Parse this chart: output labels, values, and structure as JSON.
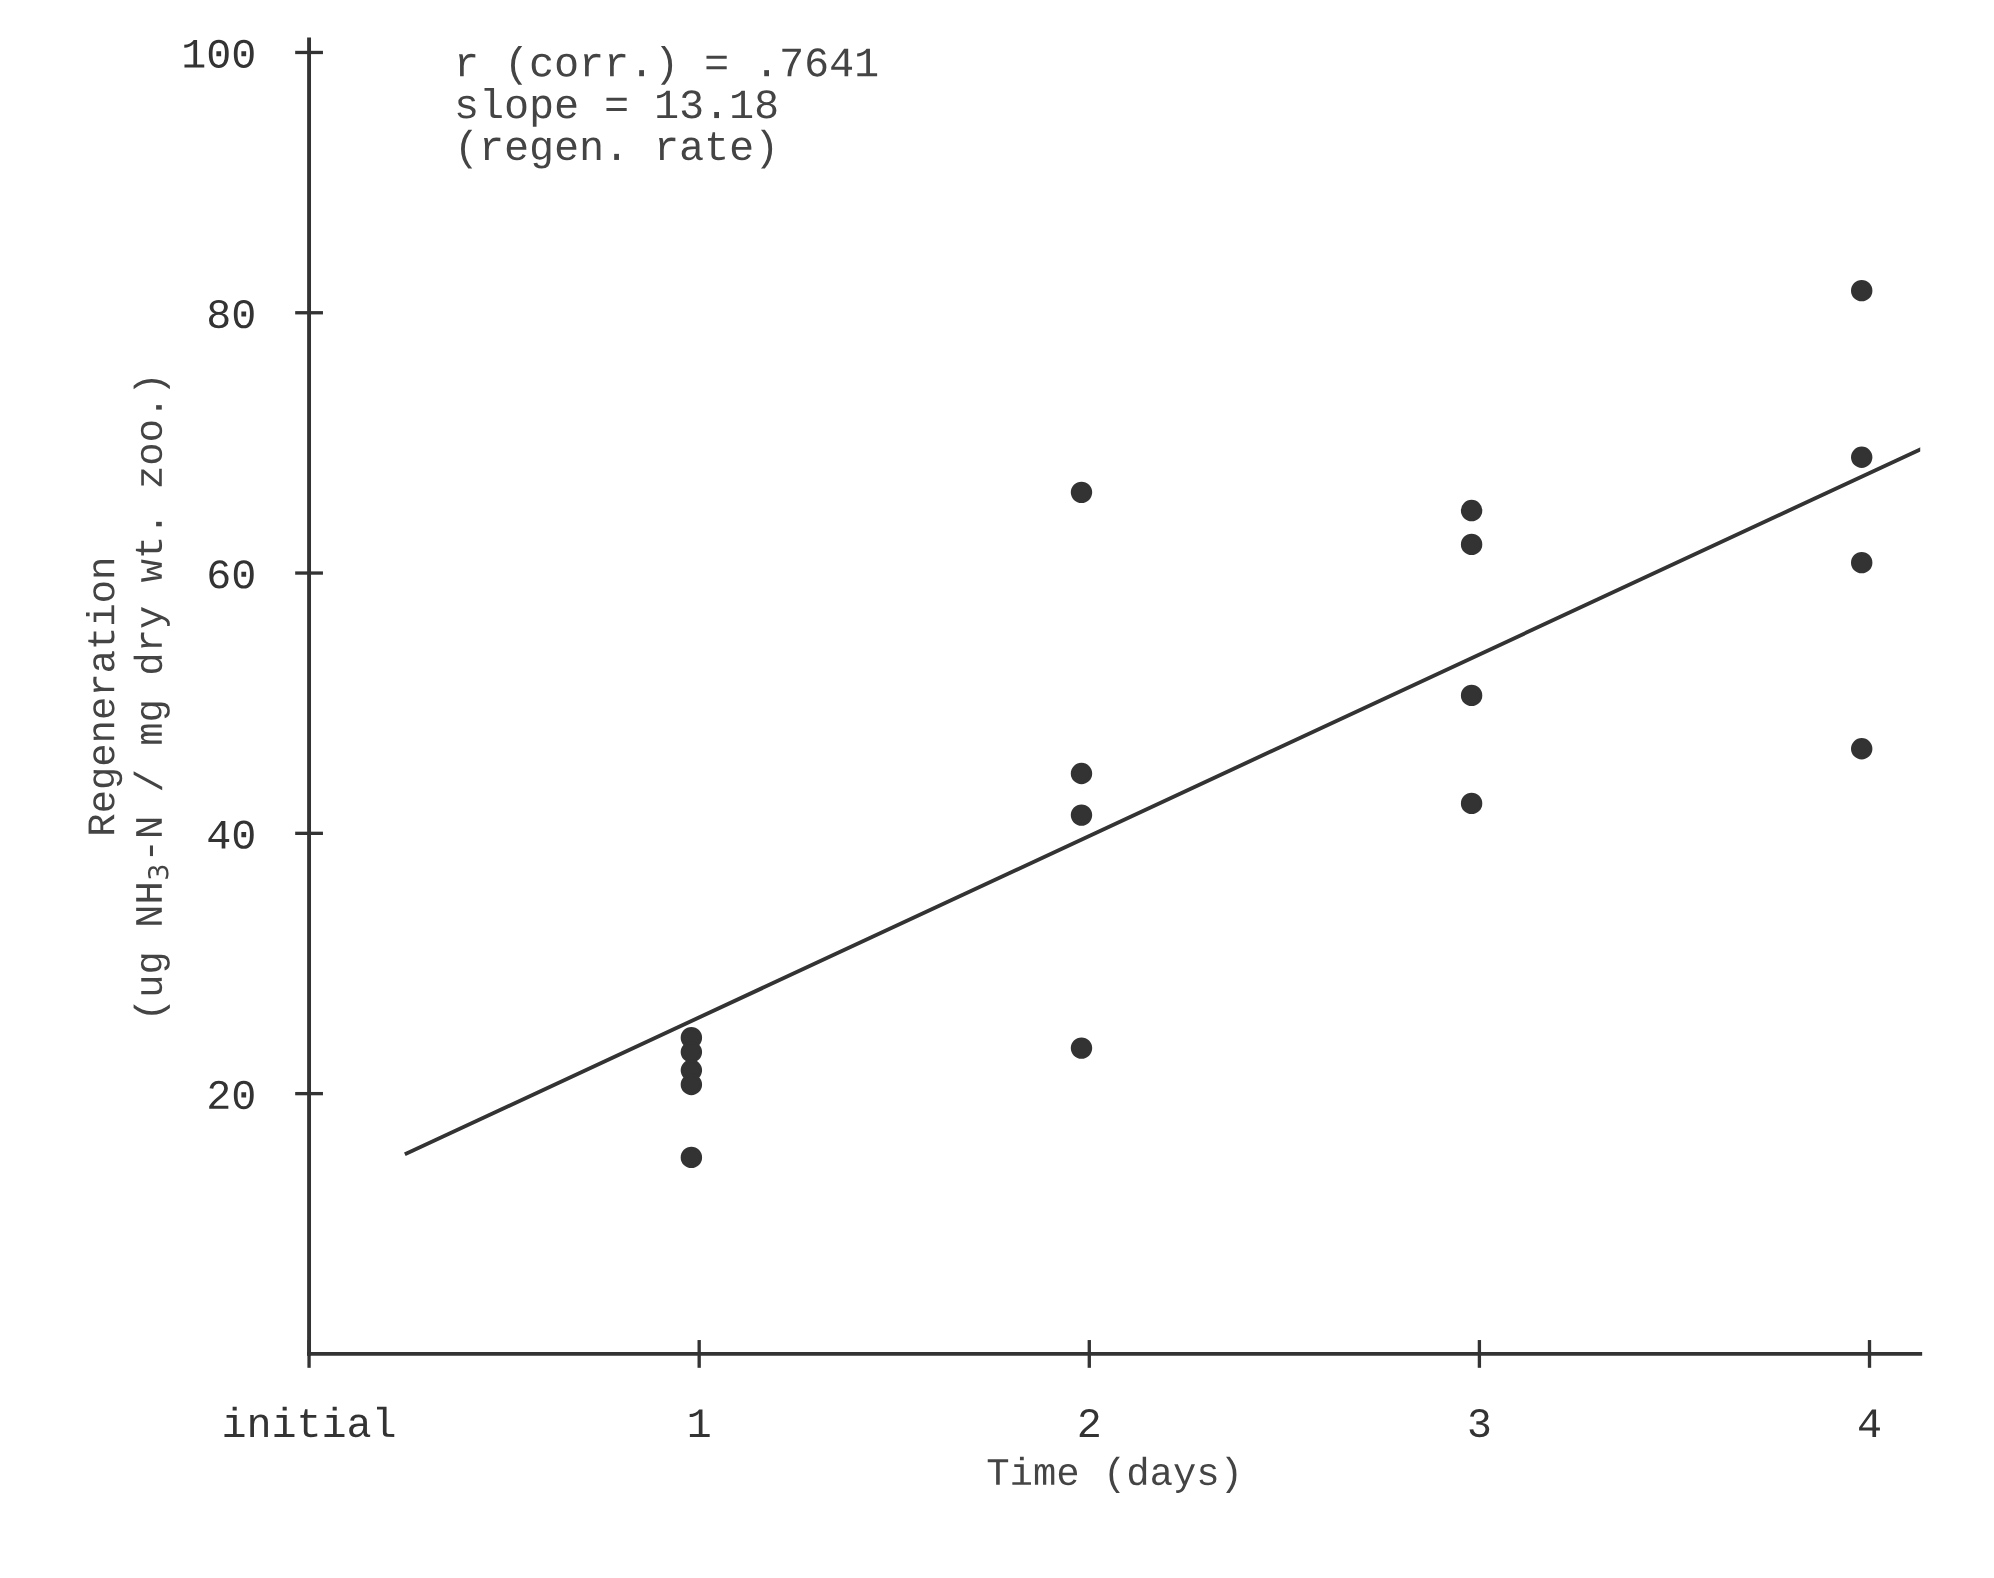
{
  "chart_data": {
    "type": "scatter",
    "xlabel": "Time (days)",
    "ylabel": "Regeneration\n(ug NH$_{3}$-N / mg dry wt. zoo.)",
    "annotations": [
      "r (corr.) = .7641\nslope = 13.18\n(regen. rate)"
    ],
    "xlim": [
      0,
      4.13
    ],
    "ylim": [
      0,
      101
    ],
    "xticks": [
      {
        "value": 0,
        "label": "initial"
      },
      1,
      2,
      3,
      4
    ],
    "yticks": [
      20,
      40,
      60,
      80,
      100
    ],
    "grid": false,
    "marker": "circle",
    "series": [
      {
        "color": "#333333",
        "x": [
          0.98,
          0.98,
          0.98,
          0.98,
          0.98,
          1.98,
          1.98,
          1.98,
          1.98,
          2.98,
          2.98,
          2.98,
          2.98,
          3.98,
          3.98,
          3.98,
          3.98
        ],
        "values": [
          24.3,
          23.2,
          21.8,
          20.7,
          15.1,
          66.2,
          44.6,
          41.4,
          23.5,
          64.8,
          62.2,
          50.6,
          42.3,
          81.7,
          68.9,
          60.8,
          46.5
        ]
      },
      {
        "type": "line",
        "color": "#333333",
        "x": [
          0.25,
          4.13
        ],
        "values": [
          15.4,
          69.5
        ],
        "marker": "none",
        "line_style": "solid"
      }
    ]
  }
}
